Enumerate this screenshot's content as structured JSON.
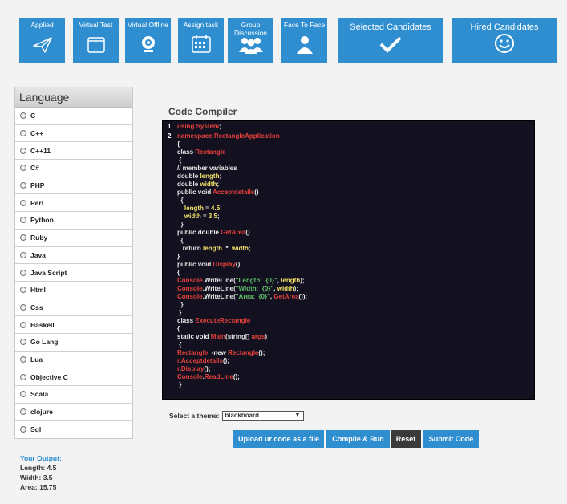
{
  "tiles": {
    "applied": "Applied",
    "virtual_test": "Virtual Test",
    "virtual_offline": "Virtual Offline",
    "assign_task": "Assign task",
    "group_discussion": "Group Discussion",
    "face_to_face": "Face To Face",
    "selected_candidates": "Selected Candidates",
    "hired_candidates": "Hired Candidates"
  },
  "language_panel": {
    "title": "Language",
    "items": [
      "C",
      "C++",
      "C++11",
      "C#",
      "PHP",
      "Perl",
      "Python",
      "Ruby",
      "Java",
      "Java Script",
      "Html",
      "Css",
      "Haskell",
      "Go Lang",
      "Lua",
      "Objective C",
      "Scala",
      "clojure",
      "Sql"
    ]
  },
  "compiler": {
    "title": "Code Compiler",
    "lines": [
      {
        "num": "1",
        "text": "using System;"
      },
      {
        "num": "2",
        "text": "namespace RectangleApplication"
      },
      {
        "num": "",
        "text": "{"
      },
      {
        "num": "",
        "text": "class Rectangle"
      },
      {
        "num": "",
        "text": " {"
      },
      {
        "num": "",
        "text": "// member variables"
      },
      {
        "num": "",
        "text": "double length;"
      },
      {
        "num": "",
        "text": "double width;"
      },
      {
        "num": "",
        "text": "public void Acceptdetails()"
      },
      {
        "num": "",
        "text": "  {"
      },
      {
        "num": "",
        "text": "    length = 4.5;"
      },
      {
        "num": "",
        "text": "    width = 3.5;"
      },
      {
        "num": "",
        "text": "  }"
      },
      {
        "num": "",
        "text": "public double GetArea()"
      },
      {
        "num": "",
        "text": "  {"
      },
      {
        "num": "",
        "text": "   return length  *  width;"
      },
      {
        "num": "",
        "text": "}"
      },
      {
        "num": "",
        "text": "public void Display()"
      },
      {
        "num": "",
        "text": "{"
      },
      {
        "num": "",
        "text": "Console.WriteLine(\"Length:  {0}\", length);"
      },
      {
        "num": "",
        "text": "Console.WriteLine(\"Width:  {0}\", width);"
      },
      {
        "num": "",
        "text": "Console.WriteLine(\"Area:  {0}\", GetArea());"
      },
      {
        "num": "",
        "text": "  }"
      },
      {
        "num": "",
        "text": " }"
      },
      {
        "num": "",
        "text": "class ExecuteRectangle"
      },
      {
        "num": "",
        "text": "{"
      },
      {
        "num": "",
        "text": "static void Main(string[] args)"
      },
      {
        "num": "",
        "text": " {"
      },
      {
        "num": "",
        "text": "Rectangle  -new Rectangle();"
      },
      {
        "num": "",
        "text": "r.Acceptdetails();"
      },
      {
        "num": "",
        "text": "r.Display();"
      },
      {
        "num": "",
        "text": "Console.ReadLine();"
      },
      {
        "num": "",
        "text": " }"
      }
    ]
  },
  "theme": {
    "label": "Select a theme:",
    "value": "blackboard"
  },
  "buttons": {
    "upload": "Upload ur code as a file",
    "compile": "Compile & Run",
    "reset": "Reset",
    "submit": "Submit Code"
  },
  "output": {
    "title": "Your Output:",
    "lines": [
      "Length: 4.5",
      "Width: 3.5",
      "Area: 15.75"
    ]
  },
  "colors": {
    "tile_blue": "#2f8ed0",
    "button_blue": "#2f8ed0",
    "reset_dark": "#3a3a3a",
    "editor_bg": "#13111f",
    "keyword_red": "#e8413b",
    "string_green": "#5fc16a",
    "number_yellow": "#f3e36a"
  }
}
